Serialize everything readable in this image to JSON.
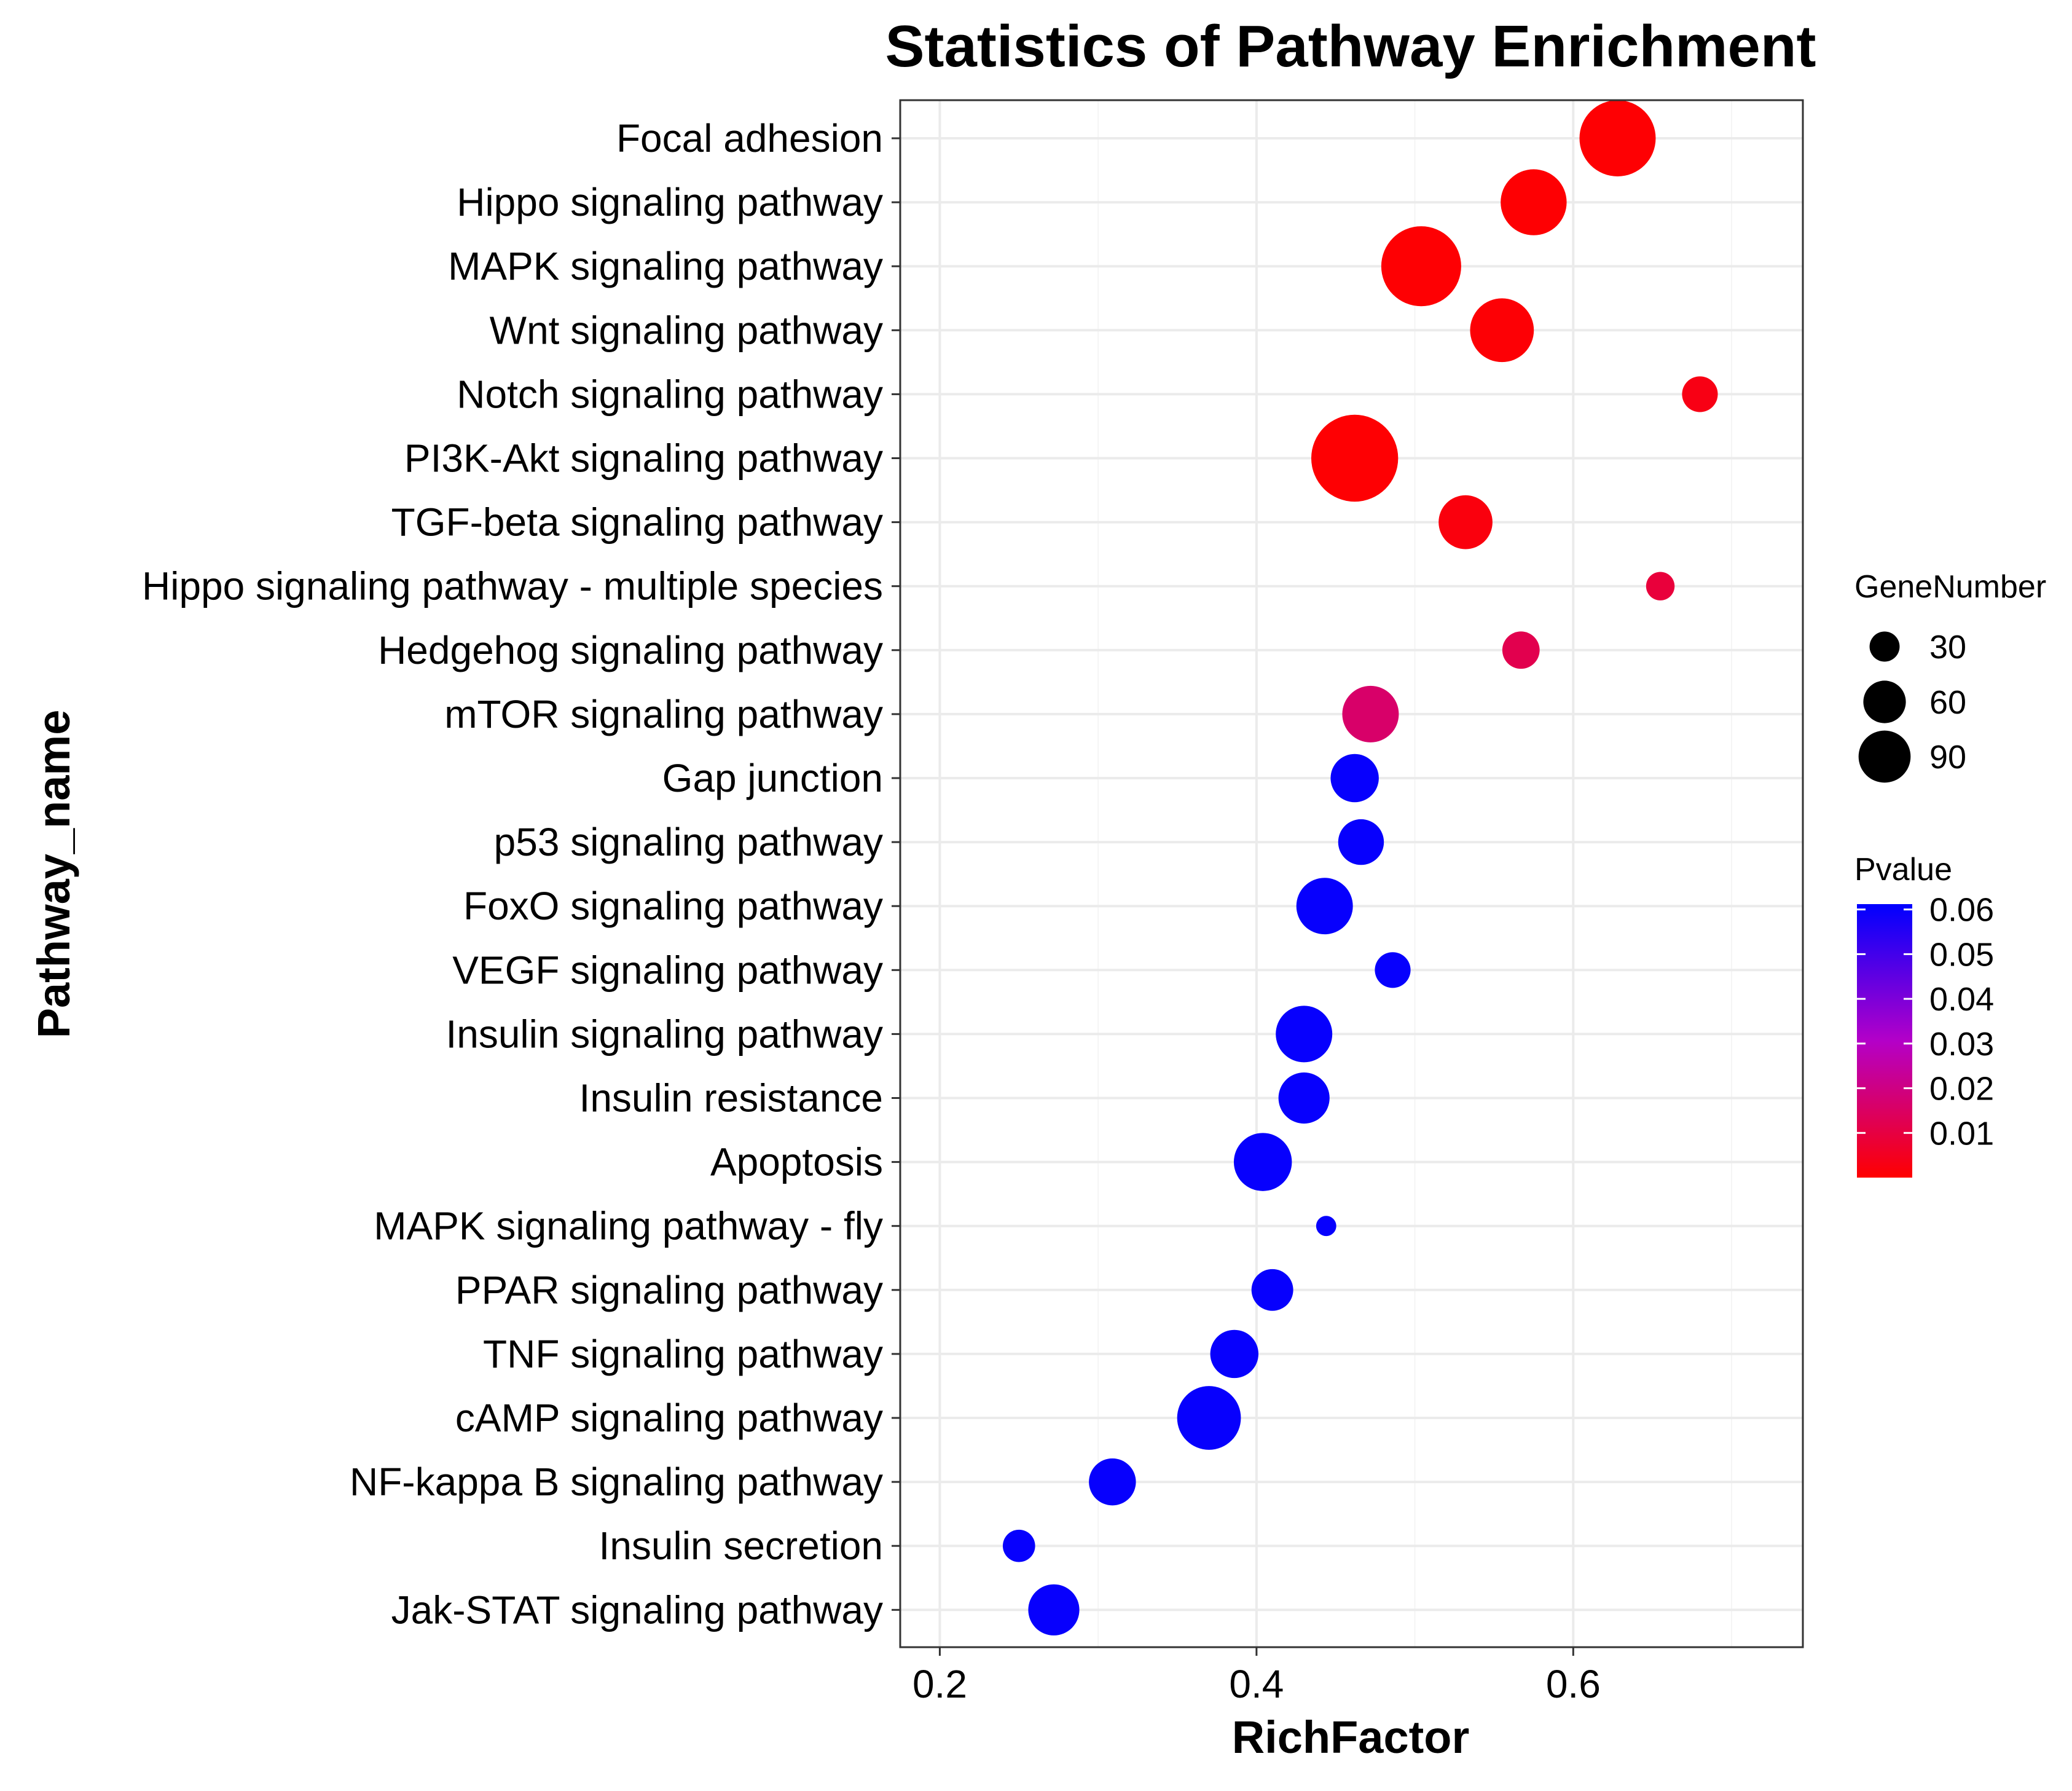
{
  "chart_data": {
    "type": "scatter",
    "title": "Statistics of Pathway Enrichment",
    "xlabel": "RichFactor",
    "ylabel": "Pathway_name",
    "xlim": [
      0.175,
      0.745
    ],
    "xticks": [
      0.2,
      0.4,
      0.6
    ],
    "xtick_labels": [
      "0.2",
      "0.4",
      "0.6"
    ],
    "grid": true,
    "pathways": [
      {
        "name": "Focal adhesion",
        "rich_factor": 0.628,
        "gene_number": 100,
        "pvalue": 0.0005
      },
      {
        "name": "Hippo signaling pathway",
        "rich_factor": 0.575,
        "gene_number": 75,
        "pvalue": 0.0005
      },
      {
        "name": "MAPK signaling pathway",
        "rich_factor": 0.504,
        "gene_number": 110,
        "pvalue": 0.0005
      },
      {
        "name": "Wnt signaling pathway",
        "rich_factor": 0.555,
        "gene_number": 70,
        "pvalue": 0.0008
      },
      {
        "name": "Notch signaling pathway",
        "rich_factor": 0.68,
        "gene_number": 22,
        "pvalue": 0.003
      },
      {
        "name": "PI3K-Akt signaling pathway",
        "rich_factor": 0.462,
        "gene_number": 130,
        "pvalue": 0.0005
      },
      {
        "name": "TGF-beta signaling pathway",
        "rich_factor": 0.532,
        "gene_number": 50,
        "pvalue": 0.002
      },
      {
        "name": "Hippo signaling pathway - multiple species",
        "rich_factor": 0.655,
        "gene_number": 14,
        "pvalue": 0.009
      },
      {
        "name": "Hedgehog signaling pathway",
        "rich_factor": 0.567,
        "gene_number": 24,
        "pvalue": 0.012
      },
      {
        "name": "mTOR signaling pathway",
        "rich_factor": 0.472,
        "gene_number": 55,
        "pvalue": 0.016
      },
      {
        "name": "Gap junction",
        "rich_factor": 0.462,
        "gene_number": 40,
        "pvalue": 0.06
      },
      {
        "name": "p53 signaling pathway",
        "rich_factor": 0.466,
        "gene_number": 36,
        "pvalue": 0.06
      },
      {
        "name": "FoxO signaling pathway",
        "rich_factor": 0.443,
        "gene_number": 55,
        "pvalue": 0.06
      },
      {
        "name": "VEGF signaling pathway",
        "rich_factor": 0.486,
        "gene_number": 22,
        "pvalue": 0.06
      },
      {
        "name": "Insulin signaling pathway",
        "rich_factor": 0.43,
        "gene_number": 55,
        "pvalue": 0.06
      },
      {
        "name": "Insulin resistance",
        "rich_factor": 0.43,
        "gene_number": 45,
        "pvalue": 0.06
      },
      {
        "name": "Apoptosis",
        "rich_factor": 0.404,
        "gene_number": 58,
        "pvalue": 0.06
      },
      {
        "name": "MAPK signaling pathway - fly",
        "rich_factor": 0.444,
        "gene_number": 7,
        "pvalue": 0.06
      },
      {
        "name": "PPAR signaling pathway",
        "rich_factor": 0.41,
        "gene_number": 30,
        "pvalue": 0.06
      },
      {
        "name": "TNF signaling pathway",
        "rich_factor": 0.386,
        "gene_number": 40,
        "pvalue": 0.06
      },
      {
        "name": "cAMP signaling pathway",
        "rich_factor": 0.37,
        "gene_number": 70,
        "pvalue": 0.06
      },
      {
        "name": "NF-kappa B signaling pathway",
        "rich_factor": 0.309,
        "gene_number": 38,
        "pvalue": 0.06
      },
      {
        "name": "Insulin secretion",
        "rich_factor": 0.25,
        "gene_number": 18,
        "pvalue": 0.06
      },
      {
        "name": "Jak-STAT signaling pathway",
        "rich_factor": 0.272,
        "gene_number": 45,
        "pvalue": 0.06
      }
    ],
    "size_legend": {
      "title": "GeneNumber",
      "values": [
        30,
        60,
        90
      ],
      "labels": [
        "30",
        "60",
        "90"
      ]
    },
    "color_legend": {
      "title": "Pvalue",
      "ticks": [
        0.06,
        0.05,
        0.04,
        0.03,
        0.02,
        0.01
      ],
      "tick_labels": [
        "0.06",
        "0.05",
        "0.04",
        "0.03",
        "0.02",
        "0.01"
      ],
      "range": [
        0.0,
        0.0612
      ],
      "low_color": "#FF0000",
      "high_color": "#0000FF"
    },
    "colors": {
      "panel_border": "#333333",
      "grid_major": "#EBEBEB",
      "grid_minor": "#F5F5F5",
      "background": "#FFFFFF"
    }
  }
}
